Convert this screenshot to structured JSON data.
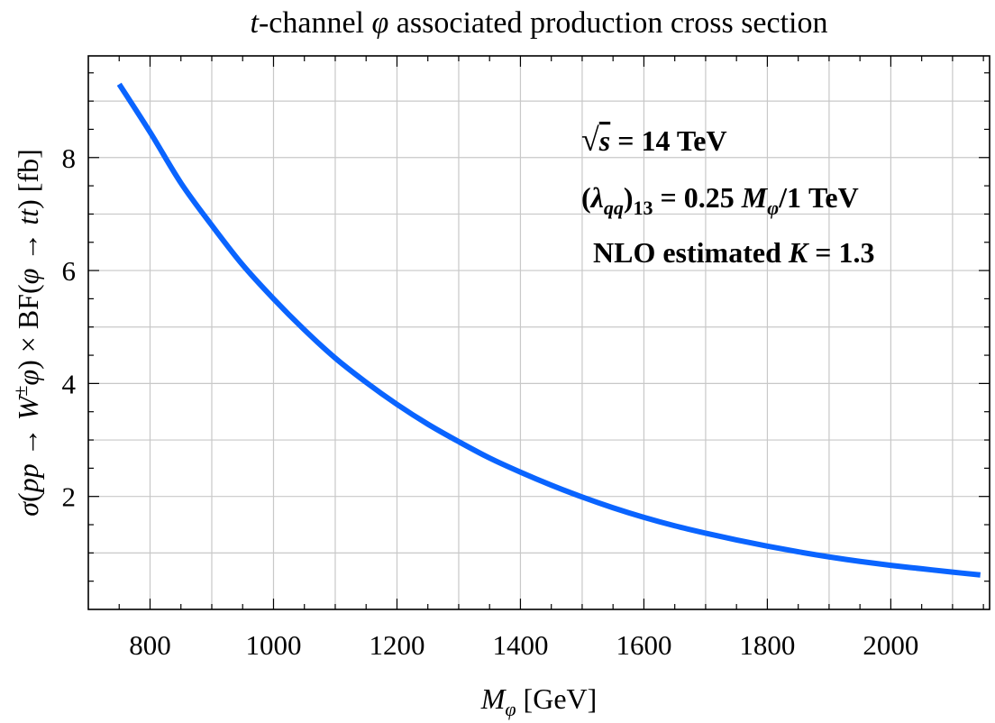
{
  "chart_data": {
    "type": "line",
    "title": "t-channel φ associated production cross section",
    "xlabel": "M_φ [GeV]",
    "ylabel": "σ(pp → W±φ) × BF(φ → tt) [fb]",
    "xlim": [
      700,
      2160
    ],
    "ylim": [
      0,
      9.8
    ],
    "x_ticks": [
      800,
      1000,
      1200,
      1400,
      1600,
      1800,
      2000
    ],
    "x_tick_labels": [
      "800",
      "1000",
      "1200",
      "1400",
      "1600",
      "1800",
      "2000"
    ],
    "y_ticks": [
      2,
      4,
      6,
      8
    ],
    "y_tick_labels": [
      "2",
      "4",
      "6",
      "8"
    ],
    "grid": true,
    "series": [
      {
        "color": "#0a64ff",
        "x": [
          750,
          800,
          850,
          900,
          950,
          1000,
          1050,
          1100,
          1150,
          1200,
          1250,
          1300,
          1350,
          1400,
          1450,
          1500,
          1550,
          1600,
          1650,
          1700,
          1750,
          1800,
          1850,
          1900,
          1950,
          2000,
          2050,
          2100,
          2145
        ],
        "y": [
          9.3,
          8.45,
          7.55,
          6.8,
          6.1,
          5.5,
          4.95,
          4.45,
          4.02,
          3.63,
          3.28,
          2.97,
          2.68,
          2.43,
          2.2,
          1.99,
          1.8,
          1.63,
          1.48,
          1.35,
          1.23,
          1.12,
          1.02,
          0.93,
          0.85,
          0.78,
          0.72,
          0.66,
          0.61
        ]
      }
    ],
    "annotations": [
      "√s = 14 TeV",
      "(λqq)13 = 0.25 Mφ/1 TeV",
      "NLO estimated K = 1.3"
    ]
  }
}
